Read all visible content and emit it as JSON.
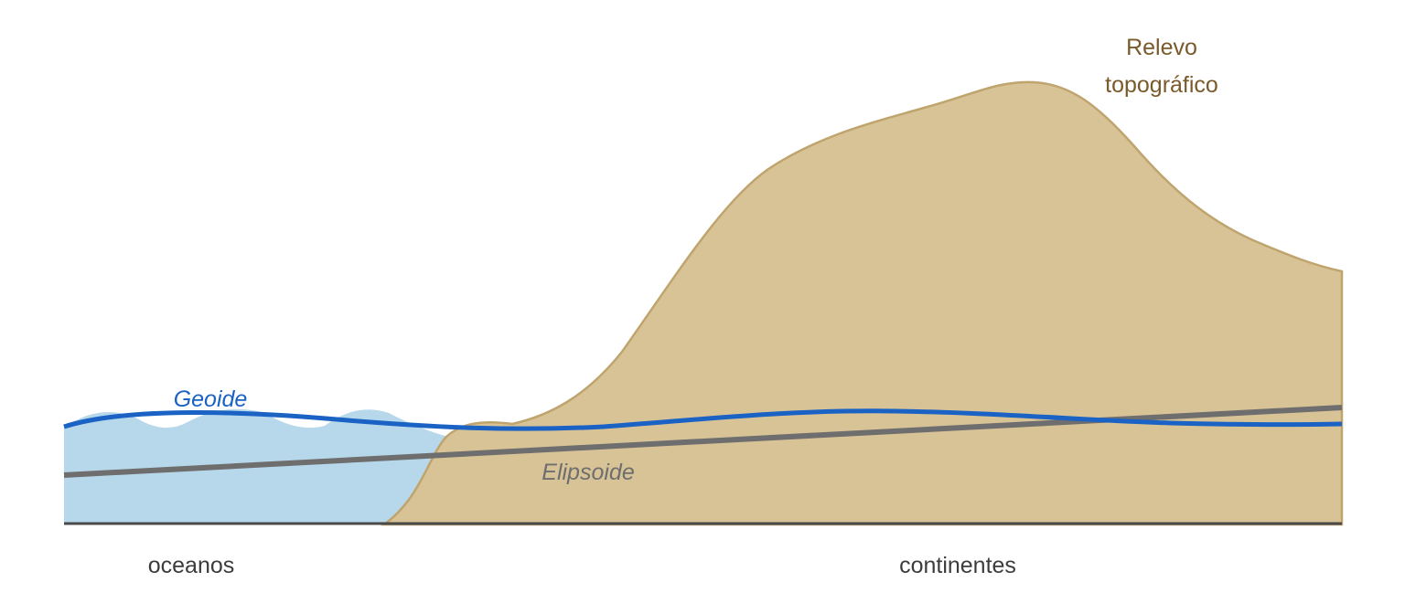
{
  "labels": {
    "relief_line1": "Relevo",
    "relief_line2": "topográfico",
    "geoid": "Geoide",
    "ellipsoid": "Elipsoide",
    "oceans": "oceanos",
    "continents": "continentes"
  },
  "colors": {
    "ocean_fill": "#b7d7ea",
    "land_fill": "#d8c397",
    "land_stroke": "#c0a46e",
    "relief_text": "#7a5a2a",
    "geoid_line": "#1a62c4",
    "ellipsoid_line": "#6e6e6e",
    "baseline": "#4a4a4a",
    "region_text": "#3c3c3c"
  }
}
